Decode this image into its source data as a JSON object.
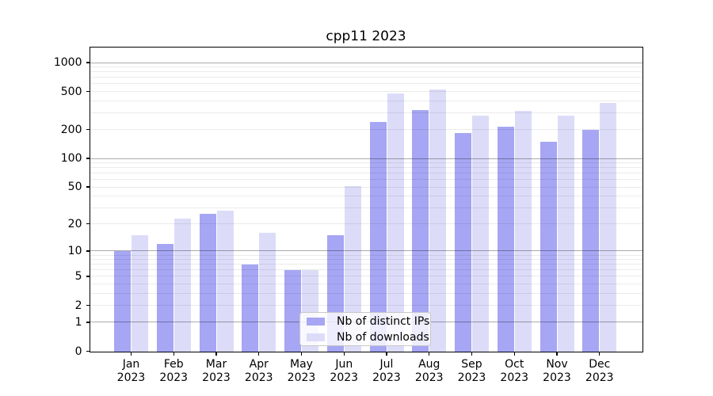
{
  "title": "cpp11 2023",
  "colors": {
    "distinct_ips": "#a6a6f4",
    "downloads": "#dcdcf9",
    "grid_minor": "rgba(0,0,0,0.08)",
    "grid_major": "rgba(0,0,0,0.33)",
    "axis": "#000000",
    "legend_border": "#c8c8c8",
    "legend_background": "rgba(255,255,255,0.8)"
  },
  "legend": {
    "items": [
      {
        "label": "Nb of distinct IPs"
      },
      {
        "label": "Nb of downloads"
      }
    ]
  },
  "chart_data": {
    "type": "bar",
    "title": "cpp11 2023",
    "categories": [
      "Jan 2023",
      "Feb 2023",
      "Mar 2023",
      "Apr 2023",
      "May 2023",
      "Jun 2023",
      "Jul 2023",
      "Aug 2023",
      "Sep 2023",
      "Oct 2023",
      "Nov 2023",
      "Dec 2023"
    ],
    "series": [
      {
        "name": "Nb of distinct IPs",
        "values": [
          10,
          12,
          26,
          7,
          6,
          15,
          240,
          320,
          185,
          215,
          150,
          200
        ]
      },
      {
        "name": "Nb of downloads",
        "values": [
          15,
          23,
          28,
          16,
          6,
          51,
          480,
          520,
          280,
          315,
          280,
          380
        ]
      }
    ],
    "yscale": "log1p",
    "ylim": [
      0,
      1450
    ],
    "yticks": [
      1000,
      500,
      200,
      100,
      50,
      20,
      10,
      5,
      2,
      1,
      0
    ],
    "major_gridlines": [
      1,
      10,
      100,
      1000
    ],
    "minor_gridlines": [
      2,
      3,
      4,
      5,
      6,
      7,
      8,
      9,
      20,
      30,
      40,
      50,
      60,
      70,
      80,
      90,
      200,
      300,
      400,
      500,
      600,
      700,
      800,
      900
    ],
    "grid": true,
    "legend_position": "lower center"
  }
}
